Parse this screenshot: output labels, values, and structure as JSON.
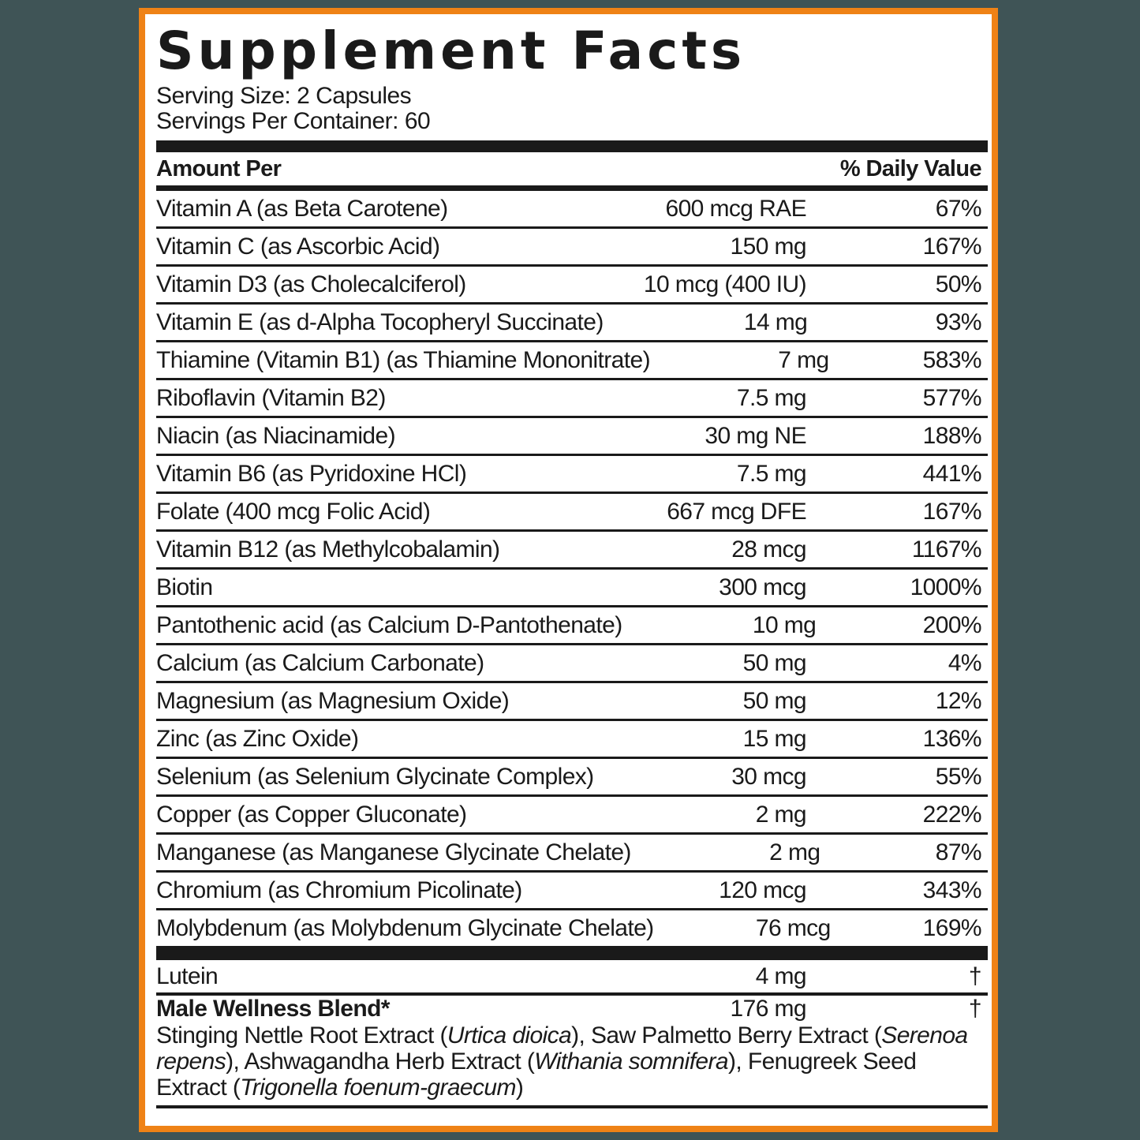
{
  "title": "Supplement Facts",
  "serving_size": "Serving Size: 2 Capsules",
  "servings_per_container": "Servings Per Container: 60",
  "header": {
    "amount_per": "Amount Per",
    "daily_value": "% Daily Value"
  },
  "rows": [
    {
      "name": "Vitamin A (as Beta Carotene)",
      "amount": "600 mcg RAE",
      "dv": "67%"
    },
    {
      "name": "Vitamin C (as Ascorbic Acid)",
      "amount": "150 mg",
      "dv": "167%"
    },
    {
      "name": "Vitamin D3 (as Cholecalciferol)",
      "amount": "10 mcg (400 IU)",
      "dv": "50%"
    },
    {
      "name": "Vitamin E (as d-Alpha Tocopheryl Succinate)",
      "amount": "14 mg",
      "dv": "93%"
    },
    {
      "name": "Thiamine (Vitamin B1) (as Thiamine Mononitrate)",
      "amount": "7 mg",
      "dv": "583%"
    },
    {
      "name": "Riboflavin (Vitamin B2)",
      "amount": "7.5 mg",
      "dv": "577%"
    },
    {
      "name": "Niacin (as Niacinamide)",
      "amount": "30 mg NE",
      "dv": "188%"
    },
    {
      "name": "Vitamin B6 (as Pyridoxine HCl)",
      "amount": "7.5 mg",
      "dv": "441%"
    },
    {
      "name": "Folate (400 mcg Folic Acid)",
      "amount": "667 mcg DFE",
      "dv": "167%"
    },
    {
      "name": "Vitamin B12 (as Methylcobalamin)",
      "amount": "28 mcg",
      "dv": "1167%"
    },
    {
      "name": "Biotin",
      "amount": "300 mcg",
      "dv": "1000%"
    },
    {
      "name": "Pantothenic acid (as Calcium D-Pantothenate)",
      "amount": "10 mg",
      "dv": "200%"
    },
    {
      "name": "Calcium (as Calcium Carbonate)",
      "amount": "50 mg",
      "dv": "4%"
    },
    {
      "name": "Magnesium (as Magnesium Oxide)",
      "amount": "50 mg",
      "dv": "12%"
    },
    {
      "name": "Zinc (as Zinc Oxide)",
      "amount": "15 mg",
      "dv": "136%"
    },
    {
      "name": "Selenium (as Selenium Glycinate Complex)",
      "amount": "30 mcg",
      "dv": "55%"
    },
    {
      "name": "Copper (as Copper Gluconate)",
      "amount": "2 mg",
      "dv": "222%"
    },
    {
      "name": "Manganese (as Manganese Glycinate Chelate)",
      "amount": "2 mg",
      "dv": "87%"
    },
    {
      "name": "Chromium (as Chromium Picolinate)",
      "amount": "120 mcg",
      "dv": "343%"
    },
    {
      "name": "Molybdenum (as Molybdenum Glycinate Chelate)",
      "amount": "76 mcg",
      "dv": "169%"
    }
  ],
  "lutein": {
    "name": "Lutein",
    "amount": "4 mg",
    "dv": "†"
  },
  "blend": {
    "name": "Male Wellness Blend*",
    "amount": "176 mg",
    "dv": "†",
    "parts": [
      {
        "t": "Stinging Nettle Root Extract (",
        "i": false
      },
      {
        "t": "Urtica dioica",
        "i": true
      },
      {
        "t": "), Saw Palmetto Berry Extract (",
        "i": false
      },
      {
        "t": "Serenoa repens",
        "i": true
      },
      {
        "t": "), Ashwagandha Herb Extract (",
        "i": false
      },
      {
        "t": "Withania somnifera",
        "i": true
      },
      {
        "t": "), Fenugreek Seed Extract (",
        "i": false
      },
      {
        "t": "Trigonella foenum-graecum",
        "i": true
      },
      {
        "t": ")",
        "i": false
      }
    ]
  },
  "colors": {
    "border": "#ef8216",
    "background": "#3f5456",
    "ink": "#1a1a1a"
  }
}
